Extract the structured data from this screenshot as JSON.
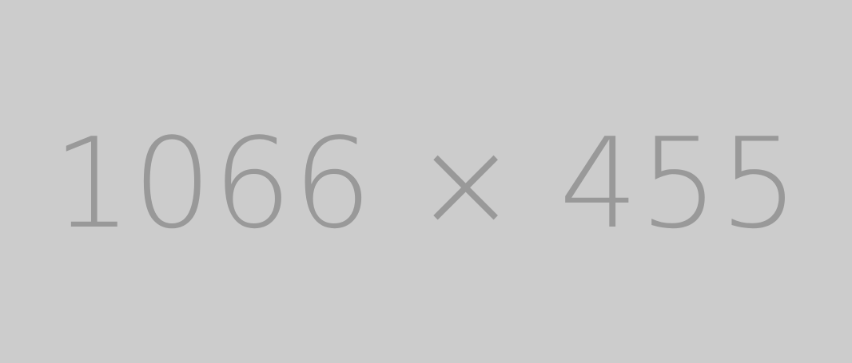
{
  "placeholder": {
    "label": "1066 × 455",
    "background_color": "#cccccc",
    "text_color": "#999999"
  }
}
